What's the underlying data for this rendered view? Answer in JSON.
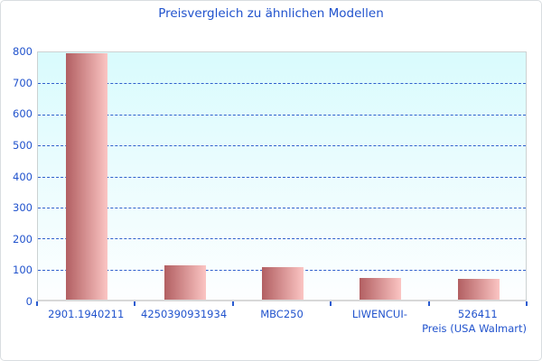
{
  "chart_data": {
    "type": "bar",
    "title": "Preisvergleich zu ähnlichen Modellen",
    "categories": [
      "2901.1940211",
      "4250390931934",
      "MBC250",
      "LIWENCUI-",
      "526411"
    ],
    "values": [
      795,
      112,
      104,
      71,
      68
    ],
    "xlabel": "Preis (USA Walmart)",
    "ylabel": "",
    "ylim": [
      0,
      800
    ],
    "ytick_step": 100,
    "grid": "horizontal-dashed",
    "legend": "none",
    "colors": {
      "title_text": "#2153cd",
      "axis_text": "#2153cd",
      "gridline": "#3060cc",
      "tick_mark": "#2a5bd0",
      "bar_gradient_left": "#b25f62",
      "bar_gradient_right": "#fbc5c3",
      "plot_bg_top": "#d9fbfd",
      "plot_bg_bottom": "#fdfeff",
      "plot_border": "#ccd2d2",
      "axis_line": "#d8d8d8"
    }
  }
}
